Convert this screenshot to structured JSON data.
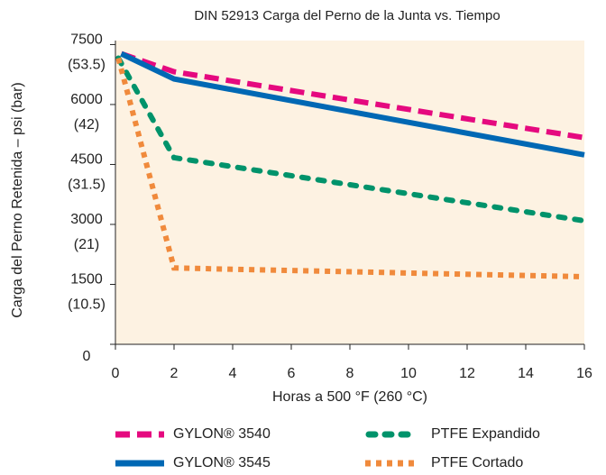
{
  "chart_data": {
    "type": "line",
    "title": "DIN 52913 Carga del Perno de la Junta vs. Tiempo",
    "x_label": "Horas a 500 °F (260 °C)",
    "y_label": "Carga del Perno Retenida – psi (bar)",
    "xlim": [
      0,
      16
    ],
    "xticks": [
      0,
      2,
      4,
      6,
      8,
      10,
      12,
      14,
      16
    ],
    "ylim": [
      0,
      7600
    ],
    "yticks": [
      0,
      {
        "value": 1500,
        "label": [
          "1500",
          "(10.5)"
        ]
      },
      {
        "value": 3000,
        "label": [
          "3000",
          "(21)"
        ]
      },
      {
        "value": 4500,
        "label": [
          "4500",
          "(31.5)"
        ]
      },
      {
        "value": 6000,
        "label": [
          "6000",
          "(42)"
        ]
      },
      {
        "value": 7500,
        "label": [
          "7500",
          "(53.5)"
        ]
      }
    ],
    "grid": false,
    "series": [
      {
        "name": "GYLON® 3540",
        "color": "#e5097f",
        "dash": "16 8",
        "x": [
          0.2,
          2,
          16
        ],
        "values": [
          7270,
          6820,
          5170
        ]
      },
      {
        "name": "GYLON® 3545",
        "color": "#0068b4",
        "dash": "none",
        "x": [
          0.2,
          2,
          16
        ],
        "values": [
          7270,
          6640,
          4740
        ]
      },
      {
        "name": "PTFE Expandido",
        "color": "#00936b",
        "dash": "7 11",
        "x": [
          0.1,
          2,
          16
        ],
        "values": [
          7160,
          4670,
          3090
        ]
      },
      {
        "name": "PTFE Cortado",
        "color": "#f08a3c",
        "dash": "6 6",
        "x": [
          0.1,
          2,
          16
        ],
        "values": [
          7160,
          1910,
          1690
        ]
      }
    ]
  }
}
